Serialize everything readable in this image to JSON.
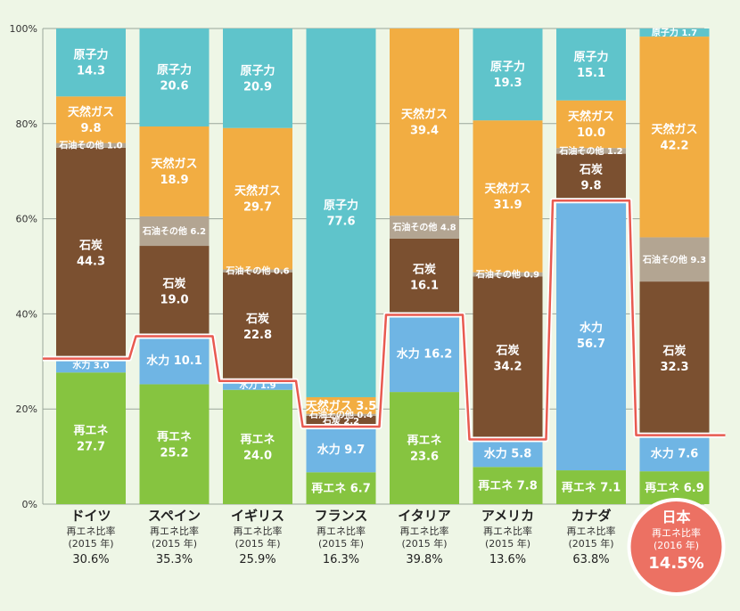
{
  "colors": {
    "renewable": "#86c440",
    "hydro": "#6fb5e4",
    "coal": "#7b5030",
    "oil": "#b3a592",
    "gas": "#f2ad42",
    "nuclear": "#5fc4cb",
    "line": "#e85a50",
    "highlight": "#ec7163"
  },
  "chart_data": {
    "type": "bar",
    "stacked": true,
    "ylim": [
      0,
      100
    ],
    "yticks": [
      "0%",
      "20%",
      "40%",
      "60%",
      "80%",
      "100%"
    ],
    "categories": [
      {
        "name": "ドイツ",
        "sub1": "再エネ比率",
        "sub2": "(2015 年)",
        "ratio": "30.6%",
        "ratio_value": 30.6,
        "highlight": false
      },
      {
        "name": "スペイン",
        "sub1": "再エネ比率",
        "sub2": "(2015 年)",
        "ratio": "35.3%",
        "ratio_value": 35.3,
        "highlight": false
      },
      {
        "name": "イギリス",
        "sub1": "再エネ比率",
        "sub2": "(2015 年)",
        "ratio": "25.9%",
        "ratio_value": 25.9,
        "highlight": false
      },
      {
        "name": "フランス",
        "sub1": "再エネ比率",
        "sub2": "(2015 年)",
        "ratio": "16.3%",
        "ratio_value": 16.3,
        "highlight": false
      },
      {
        "name": "イタリア",
        "sub1": "再エネ比率",
        "sub2": "(2015 年)",
        "ratio": "39.8%",
        "ratio_value": 39.8,
        "highlight": false
      },
      {
        "name": "アメリカ",
        "sub1": "再エネ比率",
        "sub2": "(2015 年)",
        "ratio": "13.6%",
        "ratio_value": 13.6,
        "highlight": false
      },
      {
        "name": "カナダ",
        "sub1": "再エネ比率",
        "sub2": "(2015 年)",
        "ratio": "63.8%",
        "ratio_value": 63.8,
        "highlight": false
      },
      {
        "name": "日本",
        "sub1": "再エネ比率",
        "sub2": "(2016 年)",
        "ratio": "14.5%",
        "ratio_value": 14.5,
        "highlight": true
      }
    ],
    "series": [
      {
        "key": "renewable",
        "values": [
          27.7,
          25.2,
          24.0,
          6.7,
          23.6,
          7.8,
          7.1,
          6.9
        ],
        "labels": [
          "再エネ\n27.7",
          "再エネ\n25.2",
          "再エネ\n24.0",
          "再エネ 6.7",
          "再エネ\n23.6",
          "再エネ 7.8",
          "再エネ 7.1",
          "再エネ 6.9"
        ]
      },
      {
        "key": "hydro",
        "values": [
          3.0,
          10.1,
          1.9,
          9.7,
          16.2,
          5.8,
          56.7,
          7.6
        ],
        "labels": [
          "水力 3.0",
          "水力 10.1",
          "水力 1.9",
          "水力 9.7",
          "水力 16.2",
          "水力 5.8",
          "水力\n56.7",
          "水力 7.6"
        ]
      },
      {
        "key": "coal",
        "values": [
          44.3,
          19.0,
          22.8,
          2.2,
          16.1,
          34.2,
          9.8,
          32.3
        ],
        "labels": [
          "石炭\n44.3",
          "石炭\n19.0",
          "石炭\n22.8",
          "石炭 2.2",
          "石炭\n16.1",
          "石炭\n34.2",
          "石炭\n9.8",
          "石炭\n32.3"
        ]
      },
      {
        "key": "oil",
        "values": [
          1.0,
          6.2,
          0.6,
          0.4,
          4.8,
          0.9,
          1.2,
          9.3
        ],
        "labels": [
          "石油その他 1.0",
          "石油その他 6.2",
          "石油その他 0.6",
          "石油その他 0.4",
          "石油その他 4.8",
          "石油その他 0.9",
          "石油その他 1.2",
          "石油その他 9.3"
        ]
      },
      {
        "key": "gas",
        "values": [
          9.8,
          18.9,
          29.7,
          3.5,
          39.4,
          31.9,
          10.0,
          42.2
        ],
        "labels": [
          "天然ガス\n9.8",
          "天然ガス\n18.9",
          "天然ガス\n29.7",
          "天然ガス 3.5",
          "天然ガス\n39.4",
          "天然ガス\n31.9",
          "天然ガス\n10.0",
          "天然ガス\n42.2"
        ]
      },
      {
        "key": "nuclear",
        "values": [
          14.3,
          20.6,
          20.9,
          77.6,
          0,
          19.3,
          15.1,
          1.7
        ],
        "labels": [
          "原子力\n14.3",
          "原子力\n20.6",
          "原子力\n20.9",
          "原子力\n77.6",
          "",
          "原子力\n19.3",
          "原子力\n15.1",
          "原子力 1.7"
        ]
      }
    ]
  }
}
